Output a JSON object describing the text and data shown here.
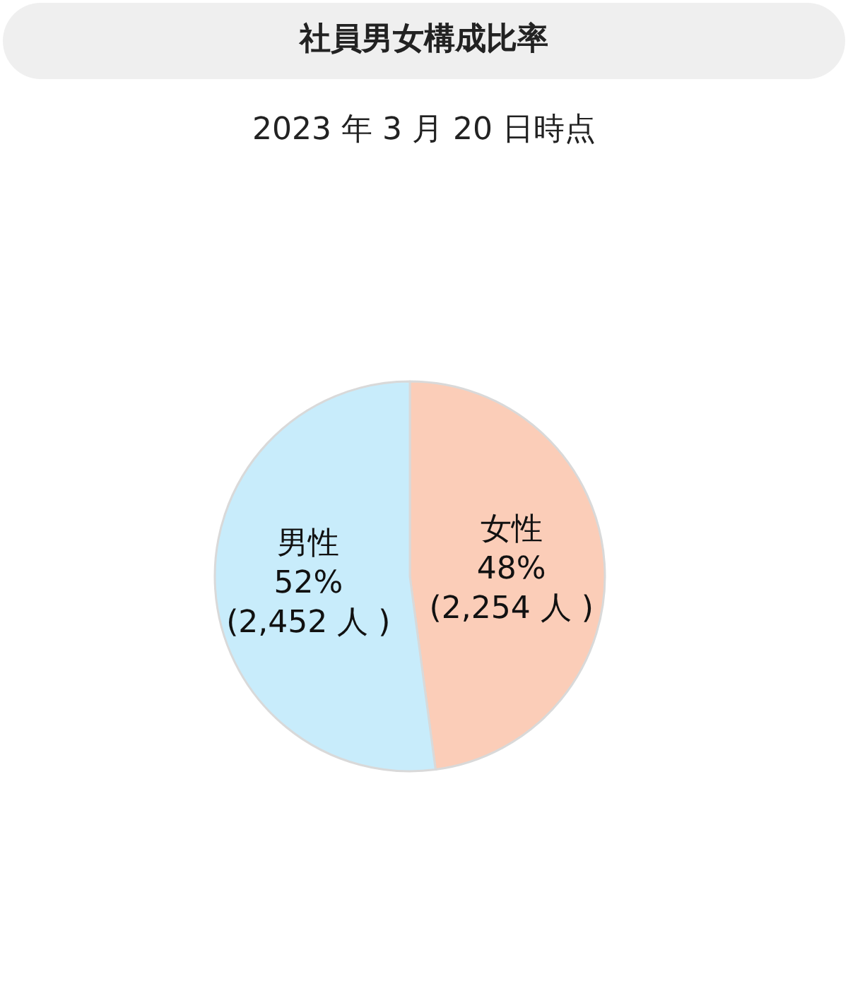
{
  "chart_data": {
    "type": "pie",
    "title": "社員男女構成比率",
    "subtitle": "2023 年 3 月 20 日時点",
    "categories": [
      "女性",
      "男性"
    ],
    "values": [
      2254,
      2452
    ],
    "colors": [
      "#fbcdb8",
      "#c8ecfb"
    ],
    "value_labels": [
      "48%\n(2,254 人 )",
      "52%\n(2,452 人 )"
    ],
    "legend": false
  }
}
